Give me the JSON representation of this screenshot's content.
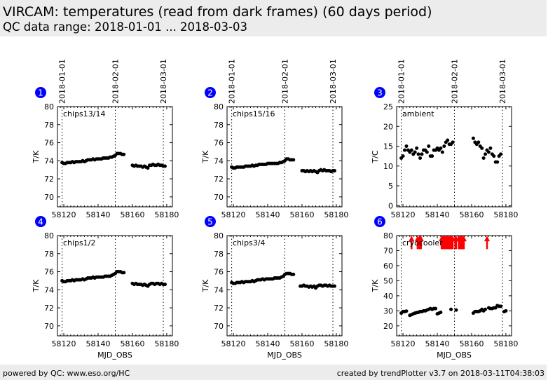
{
  "header": {
    "title": "VIRCAM: temperatures (read from dark frames) (60 days period)",
    "subtitle": "QC data range: 2018-01-01 ... 2018-03-03"
  },
  "footer": {
    "left": "powered by QC: www.eso.org/HC",
    "right": "created by trendPlotter v3.7 on 2018-03-11T04:38:03"
  },
  "colors": {
    "points": "#000000",
    "arrows": "#ff0000",
    "badge": "#0000ff"
  },
  "chart_data": [
    {
      "type": "scatter",
      "number": "1",
      "label": "chips13/14",
      "ylabel": "T/K",
      "xlabel": "",
      "xlim": [
        58116.3,
        58183.3
      ],
      "ylim": [
        68.9,
        80
      ],
      "yticks": [
        70,
        72,
        74,
        76,
        78,
        80
      ],
      "xticks": [
        58120,
        58140,
        58160,
        58180
      ],
      "date_lines": [
        {
          "x": 58119,
          "label": "2018-01-01"
        },
        {
          "x": 58150,
          "label": "2018-02-01"
        },
        {
          "x": 58178,
          "label": "2018-03-01"
        }
      ],
      "x": [
        58119,
        58120,
        58121,
        58122,
        58123,
        58124,
        58125,
        58126,
        58127,
        58128,
        58129,
        58130,
        58131,
        58132,
        58133,
        58134,
        58135,
        58136,
        58137,
        58138,
        58139,
        58140,
        58141,
        58142,
        58143,
        58144,
        58145,
        58146,
        58147,
        58148,
        58149,
        58150,
        58151,
        58152,
        58153,
        58154,
        58155,
        58160,
        58161,
        58162,
        58163,
        58164,
        58165,
        58166,
        58167,
        58168,
        58169,
        58170,
        58171,
        58172,
        58173,
        58174,
        58175,
        58176,
        58177,
        58178,
        58179
      ],
      "y": [
        73.8,
        73.7,
        73.7,
        73.8,
        73.8,
        73.8,
        73.9,
        73.8,
        73.9,
        73.9,
        73.9,
        73.9,
        74.0,
        73.9,
        74.0,
        74.1,
        74.1,
        74.1,
        74.2,
        74.1,
        74.2,
        74.2,
        74.2,
        74.2,
        74.3,
        74.3,
        74.3,
        74.3,
        74.4,
        74.4,
        74.5,
        74.6,
        74.8,
        74.8,
        74.8,
        74.7,
        74.7,
        73.5,
        73.4,
        73.5,
        73.4,
        73.4,
        73.4,
        73.3,
        73.4,
        73.3,
        73.2,
        73.5,
        73.5,
        73.6,
        73.5,
        73.5,
        73.6,
        73.5,
        73.5,
        73.4,
        73.4
      ]
    },
    {
      "type": "scatter",
      "number": "2",
      "label": "chips15/16",
      "ylabel": "T/K",
      "xlabel": "",
      "xlim": [
        58116.3,
        58183.3
      ],
      "ylim": [
        68.9,
        80
      ],
      "yticks": [
        70,
        72,
        74,
        76,
        78,
        80
      ],
      "xticks": [
        58120,
        58140,
        58160,
        58180
      ],
      "date_lines": [
        {
          "x": 58119,
          "label": "2018-01-01"
        },
        {
          "x": 58150,
          "label": "2018-02-01"
        },
        {
          "x": 58178,
          "label": "2018-03-01"
        }
      ],
      "x": [
        58119,
        58120,
        58121,
        58122,
        58123,
        58124,
        58125,
        58126,
        58127,
        58128,
        58129,
        58130,
        58131,
        58132,
        58133,
        58134,
        58135,
        58136,
        58137,
        58138,
        58139,
        58140,
        58141,
        58142,
        58143,
        58144,
        58145,
        58146,
        58147,
        58148,
        58149,
        58150,
        58151,
        58152,
        58153,
        58154,
        58155,
        58160,
        58161,
        58162,
        58163,
        58164,
        58165,
        58166,
        58167,
        58168,
        58169,
        58170,
        58171,
        58172,
        58173,
        58174,
        58175,
        58176,
        58177,
        58178,
        58179
      ],
      "y": [
        73.3,
        73.2,
        73.2,
        73.3,
        73.3,
        73.3,
        73.3,
        73.3,
        73.4,
        73.4,
        73.4,
        73.4,
        73.5,
        73.4,
        73.5,
        73.5,
        73.6,
        73.6,
        73.6,
        73.6,
        73.6,
        73.7,
        73.7,
        73.7,
        73.7,
        73.7,
        73.7,
        73.7,
        73.8,
        73.8,
        73.9,
        74.0,
        74.2,
        74.2,
        74.1,
        74.1,
        74.1,
        72.9,
        72.9,
        72.8,
        72.9,
        72.8,
        72.9,
        72.8,
        72.9,
        72.8,
        72.7,
        72.9,
        73.0,
        72.9,
        73.0,
        72.9,
        72.9,
        72.9,
        72.8,
        72.9,
        72.9
      ]
    },
    {
      "type": "scatter",
      "number": "3",
      "label": "ambient",
      "ylabel": "T/C",
      "xlabel": "",
      "xlim": [
        58116.3,
        58183.3
      ],
      "ylim": [
        -0.3,
        25
      ],
      "yticks": [
        0,
        5,
        10,
        15,
        20,
        25
      ],
      "xticks": [
        58120,
        58140,
        58160,
        58180
      ],
      "date_lines": [
        {
          "x": 58119,
          "label": "2018-01-01"
        },
        {
          "x": 58150,
          "label": "2018-02-01"
        },
        {
          "x": 58178,
          "label": "2018-03-01"
        }
      ],
      "x": [
        58119,
        58120,
        58121,
        58122,
        58123,
        58124,
        58125,
        58126,
        58127,
        58128,
        58129,
        58130,
        58131,
        58132,
        58133,
        58134,
        58135,
        58136,
        58137,
        58138,
        58139,
        58140,
        58141,
        58142,
        58143,
        58144,
        58145,
        58146,
        58147,
        58148,
        58149,
        58161,
        58162,
        58163,
        58164,
        58165,
        58166,
        58167,
        58168,
        58169,
        58170,
        58171,
        58172,
        58173,
        58174,
        58175,
        58176,
        58177
      ],
      "y": [
        12,
        12.5,
        14,
        15,
        14,
        13.5,
        14,
        13,
        13.5,
        14.5,
        13,
        12,
        13,
        14,
        14,
        13.5,
        15,
        12.5,
        12.5,
        14,
        14,
        14.5,
        14,
        14.5,
        13.5,
        15,
        16,
        16.5,
        15.5,
        15.5,
        16,
        17,
        16,
        15.5,
        16,
        15,
        14.5,
        12,
        13,
        14,
        13.5,
        14.5,
        13,
        12.5,
        11,
        11,
        12.5,
        13
      ]
    },
    {
      "type": "scatter",
      "number": "4",
      "label": "chips1/2",
      "ylabel": "T/K",
      "xlabel": "MJD_OBS",
      "xlim": [
        58116.3,
        58183.3
      ],
      "ylim": [
        68.9,
        80
      ],
      "yticks": [
        70,
        72,
        74,
        76,
        78,
        80
      ],
      "xticks": [
        58120,
        58140,
        58160,
        58180
      ],
      "date_lines": [
        {
          "x": 58119,
          "label": ""
        },
        {
          "x": 58150,
          "label": ""
        },
        {
          "x": 58178,
          "label": ""
        }
      ],
      "x": [
        58119,
        58120,
        58121,
        58122,
        58123,
        58124,
        58125,
        58126,
        58127,
        58128,
        58129,
        58130,
        58131,
        58132,
        58133,
        58134,
        58135,
        58136,
        58137,
        58138,
        58139,
        58140,
        58141,
        58142,
        58143,
        58144,
        58145,
        58146,
        58147,
        58148,
        58149,
        58150,
        58151,
        58152,
        58153,
        58154,
        58155,
        58160,
        58161,
        58162,
        58163,
        58164,
        58165,
        58166,
        58167,
        58168,
        58169,
        58170,
        58171,
        58172,
        58173,
        58174,
        58175,
        58176,
        58177,
        58178,
        58179
      ],
      "y": [
        75.0,
        74.9,
        74.9,
        75.0,
        75.0,
        75.0,
        75.1,
        75.0,
        75.1,
        75.1,
        75.1,
        75.1,
        75.2,
        75.1,
        75.2,
        75.3,
        75.3,
        75.3,
        75.4,
        75.3,
        75.4,
        75.4,
        75.4,
        75.4,
        75.4,
        75.5,
        75.5,
        75.5,
        75.5,
        75.6,
        75.7,
        75.8,
        76.0,
        76.0,
        76.0,
        75.9,
        75.9,
        74.7,
        74.6,
        74.7,
        74.6,
        74.6,
        74.6,
        74.5,
        74.6,
        74.5,
        74.4,
        74.6,
        74.7,
        74.7,
        74.6,
        74.7,
        74.7,
        74.6,
        74.7,
        74.6,
        74.6
      ]
    },
    {
      "type": "scatter",
      "number": "5",
      "label": "chips3/4",
      "ylabel": "T/K",
      "xlabel": "MJD_OBS",
      "xlim": [
        58116.3,
        58183.3
      ],
      "ylim": [
        68.9,
        80
      ],
      "yticks": [
        70,
        72,
        74,
        76,
        78,
        80
      ],
      "xticks": [
        58120,
        58140,
        58160,
        58180
      ],
      "date_lines": [
        {
          "x": 58119,
          "label": ""
        },
        {
          "x": 58150,
          "label": ""
        },
        {
          "x": 58178,
          "label": ""
        }
      ],
      "x": [
        58119,
        58120,
        58121,
        58122,
        58123,
        58124,
        58125,
        58126,
        58127,
        58128,
        58129,
        58130,
        58131,
        58132,
        58133,
        58134,
        58135,
        58136,
        58137,
        58138,
        58139,
        58140,
        58141,
        58142,
        58143,
        58144,
        58145,
        58146,
        58147,
        58148,
        58149,
        58150,
        58151,
        58152,
        58153,
        58154,
        58155,
        58159,
        58160,
        58161,
        58162,
        58163,
        58164,
        58165,
        58166,
        58167,
        58168,
        58169,
        58170,
        58171,
        58172,
        58173,
        58174,
        58175,
        58176,
        58177,
        58178,
        58179
      ],
      "y": [
        74.8,
        74.7,
        74.7,
        74.8,
        74.8,
        74.8,
        74.9,
        74.8,
        74.9,
        74.9,
        74.9,
        74.9,
        75.0,
        74.9,
        75.0,
        75.1,
        75.1,
        75.1,
        75.2,
        75.1,
        75.2,
        75.2,
        75.2,
        75.2,
        75.2,
        75.3,
        75.3,
        75.3,
        75.3,
        75.4,
        75.5,
        75.7,
        75.8,
        75.8,
        75.8,
        75.7,
        75.7,
        74.4,
        74.4,
        74.5,
        74.4,
        74.4,
        74.3,
        74.4,
        74.3,
        74.4,
        74.2,
        74.4,
        74.5,
        74.5,
        74.4,
        74.5,
        74.5,
        74.4,
        74.5,
        74.4,
        74.4,
        74.4
      ]
    },
    {
      "type": "scatter",
      "number": "6",
      "label": "cryocooler",
      "ylabel": "T/K",
      "xlabel": "MJD_OBS",
      "xlim": [
        58116.3,
        58183.3
      ],
      "ylim": [
        13.4,
        80
      ],
      "yticks": [
        20,
        30,
        40,
        50,
        60,
        70,
        80
      ],
      "xticks": [
        58120,
        58140,
        58160,
        58180
      ],
      "date_lines": [
        {
          "x": 58119,
          "label": ""
        },
        {
          "x": 58150,
          "label": ""
        },
        {
          "x": 58178,
          "label": ""
        }
      ],
      "x": [
        58119,
        58120,
        58121,
        58122,
        58124,
        58125,
        58126,
        58127,
        58128,
        58129,
        58130,
        58131,
        58132,
        58133,
        58134,
        58135,
        58136,
        58137,
        58138,
        58139,
        58140,
        58141,
        58142,
        58148,
        58151,
        58161,
        58162,
        58163,
        58164,
        58165,
        58166,
        58167,
        58168,
        58170,
        58171,
        58172,
        58173,
        58174,
        58175,
        58176,
        58177,
        58179,
        58180
      ],
      "y": [
        28.5,
        29.5,
        29.5,
        29.8,
        27,
        27.5,
        28,
        28.5,
        28.8,
        29,
        29.5,
        29.5,
        30,
        30,
        30.5,
        31,
        31.5,
        31,
        31.5,
        31.5,
        28,
        28.5,
        29,
        31,
        30.5,
        28.5,
        29.5,
        29.5,
        29.5,
        30,
        31,
        30,
        31,
        32,
        31.5,
        31.5,
        32,
        32,
        33.5,
        33,
        33,
        29.5,
        30
      ],
      "out_of_range_arrows": [
        58125,
        58128.5,
        58129.5,
        58130.5,
        58142.5,
        58143,
        58143.5,
        58144,
        58144.5,
        58145,
        58145.5,
        58146,
        58146.5,
        58147,
        58147.5,
        58148,
        58148.5,
        58149,
        58150.5,
        58151,
        58152.5,
        58153,
        58153.5,
        58154,
        58154.5,
        58155,
        58155.5,
        58169
      ]
    }
  ]
}
